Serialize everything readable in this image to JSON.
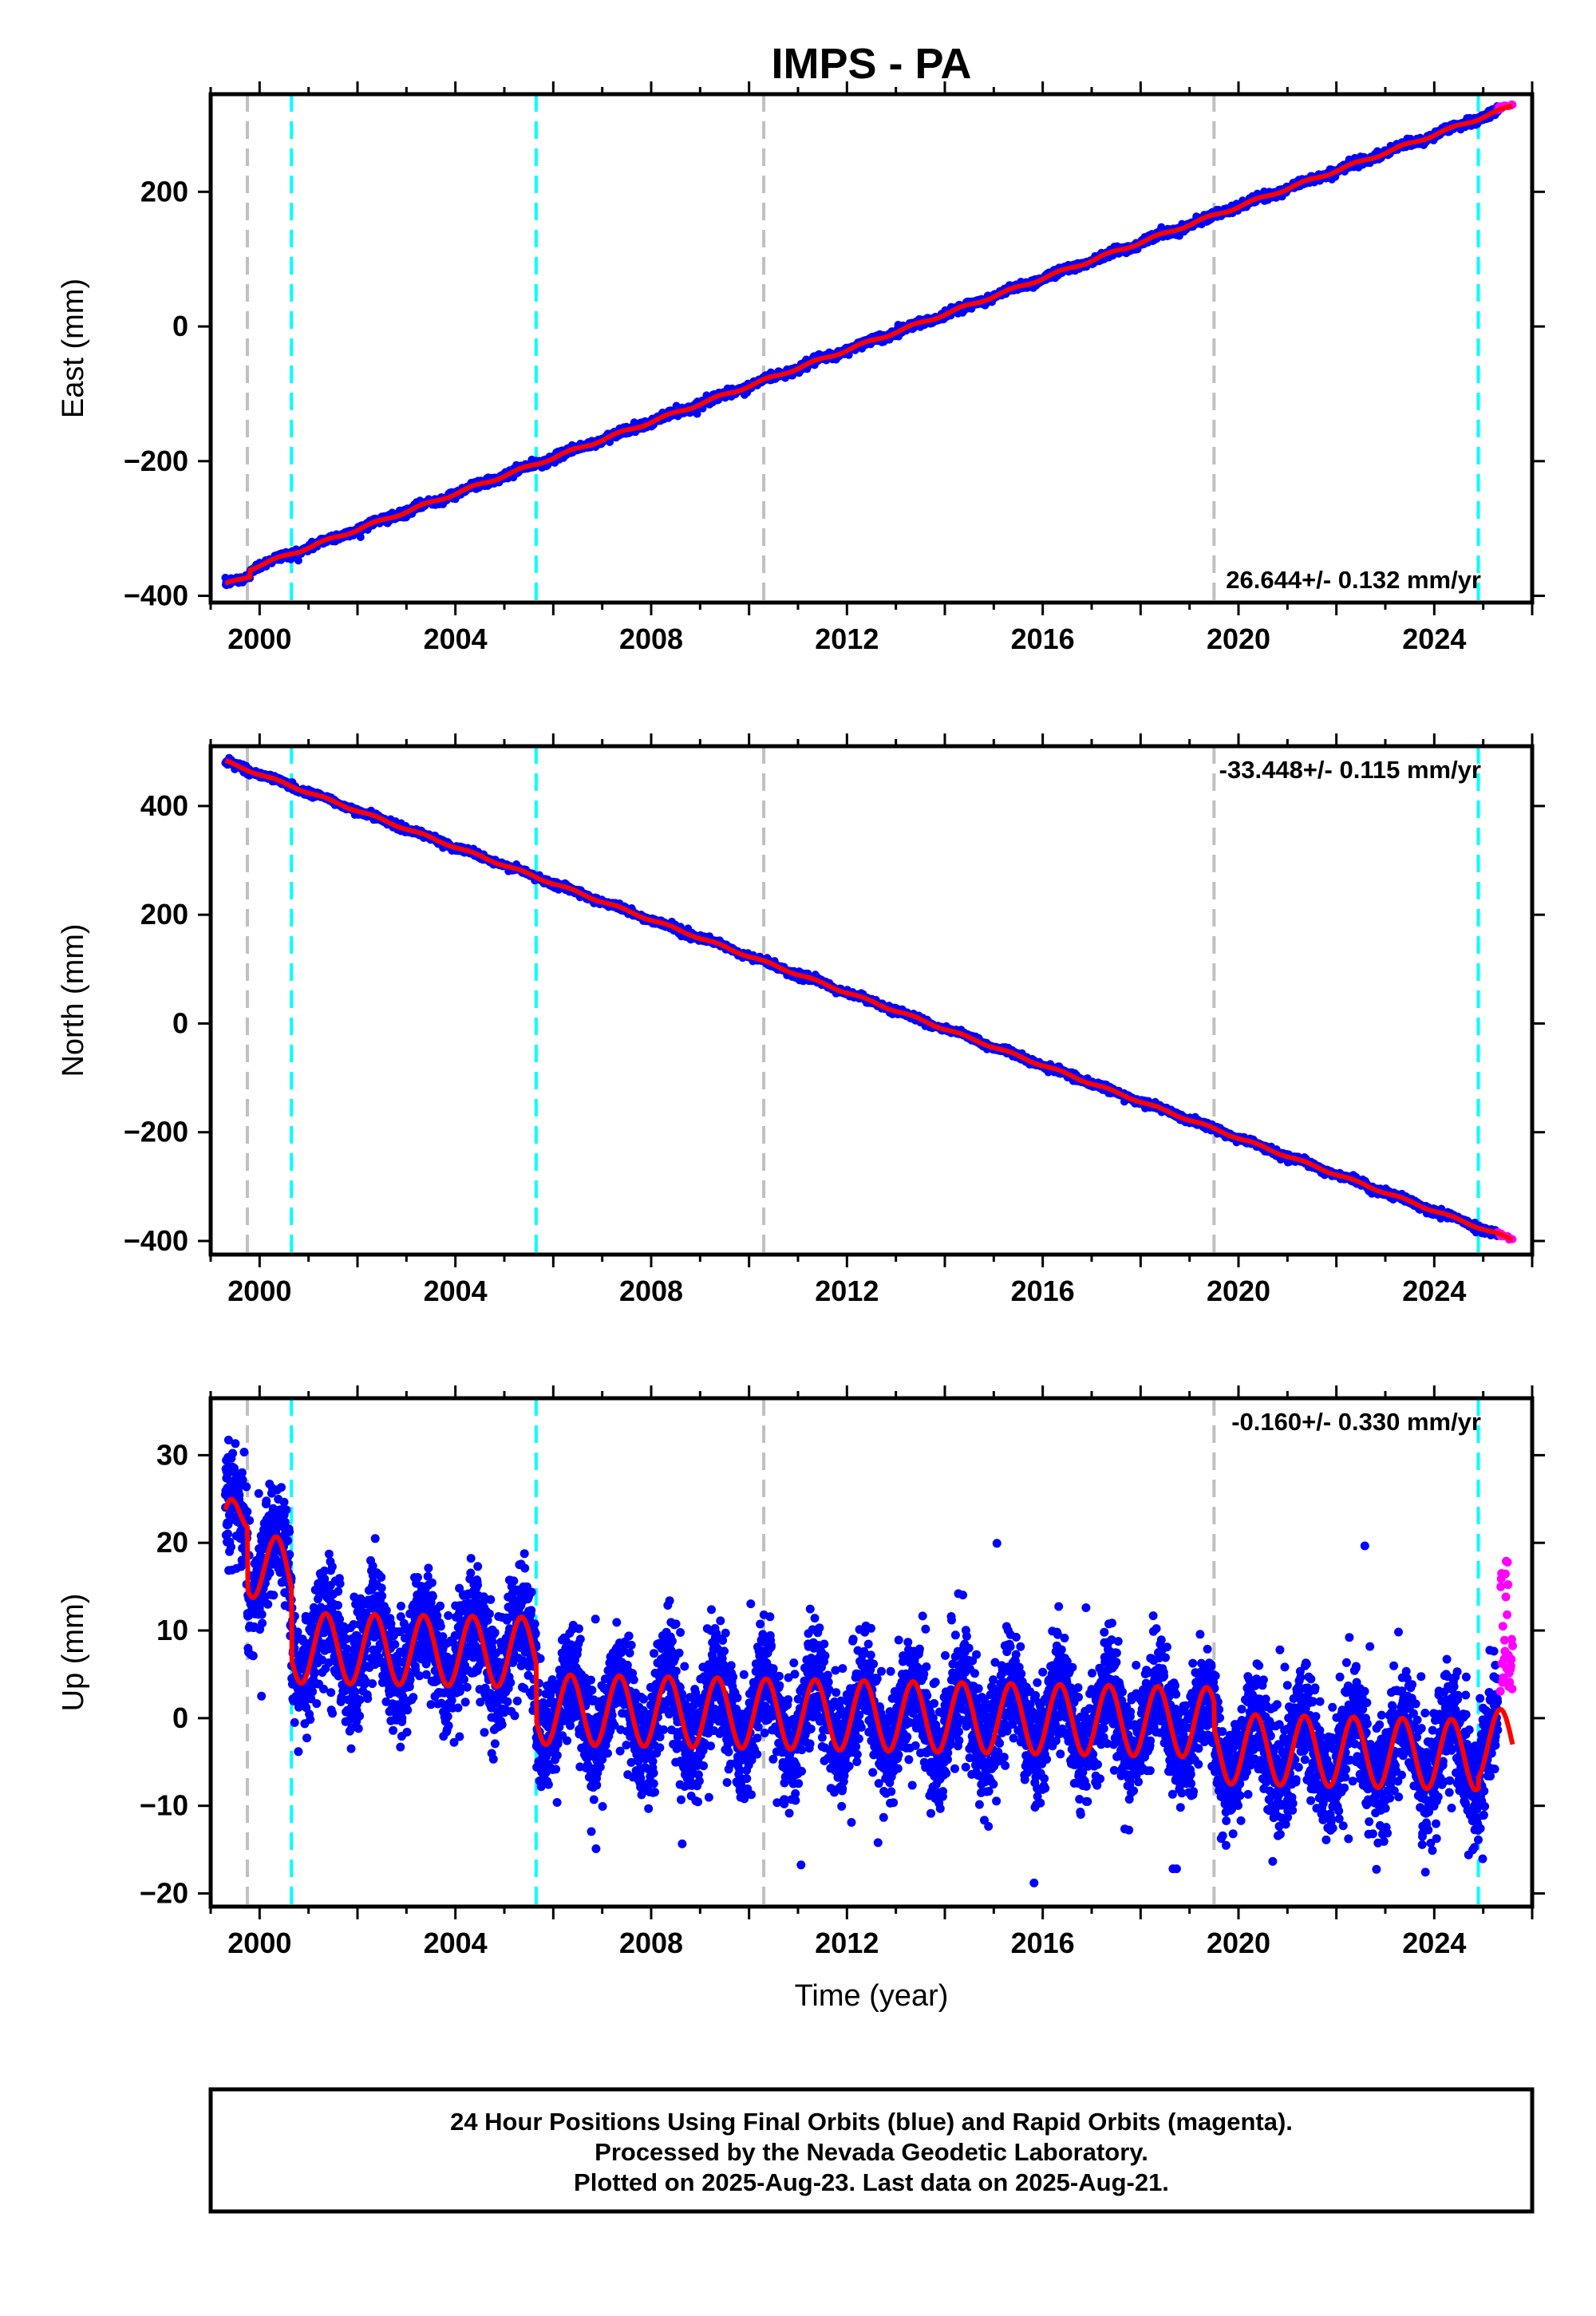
{
  "title": "IMPS - PA",
  "xlabel": "Time (year)",
  "caption": [
    "24 Hour Positions Using Final Orbits (blue) and Rapid Orbits (magenta).",
    "Processed by the Nevada Geodetic Laboratory.",
    "Plotted on 2025-Aug-23. Last data on 2025-Aug-21."
  ],
  "colors": {
    "final_orbits": "#0000ff",
    "rapid_orbits": "#ff00ff",
    "model_fit": "#ff0000",
    "equipment_change": "#00ffff",
    "earthquake": "#c0c0c0"
  },
  "chart_data": [
    {
      "type": "scatter",
      "component": "east",
      "ylabel": "East (mm)",
      "xlim": [
        1999.0,
        2026.0
      ],
      "ylim": [
        -410,
        345
      ],
      "x_ticks": [
        2000,
        2004,
        2008,
        2012,
        2016,
        2020,
        2024
      ],
      "y_ticks": [
        -400,
        -200,
        0,
        200
      ],
      "rate_label": "26.644+/- 0.132 mm/yr",
      "rate_position": "bottom-right",
      "gray_dashed_lines": [
        1999.75,
        2010.3,
        2019.5
      ],
      "cyan_dashed_lines": [
        2000.65,
        2005.65,
        2024.9
      ],
      "trend": {
        "rate_mm_per_yr": 26.644,
        "anchor_x": 2012.0,
        "anchor_y": -35
      },
      "seasonal": {
        "early_amplitude": 2,
        "late_amplitude": 2,
        "switch_year": 2005.65
      },
      "offsets": [
        {
          "x": 1999.8,
          "dy": 10
        }
      ],
      "noise_mm": 3,
      "final_range": [
        1999.3,
        2025.3
      ],
      "rapid_range": [
        2025.3,
        2025.6
      ],
      "rapid_offset": 2
    },
    {
      "type": "scatter",
      "component": "north",
      "ylabel": "North (mm)",
      "xlim": [
        1999.0,
        2026.0
      ],
      "ylim": [
        -425,
        510
      ],
      "x_ticks": [
        2000,
        2004,
        2008,
        2012,
        2016,
        2020,
        2024
      ],
      "y_ticks": [
        -400,
        -200,
        0,
        200,
        400
      ],
      "rate_label": "-33.448+/- 0.115 mm/yr",
      "rate_position": "top-right",
      "gray_dashed_lines": [
        1999.75,
        2010.3,
        2019.5
      ],
      "cyan_dashed_lines": [
        2000.65,
        2005.65,
        2024.9
      ],
      "trend": {
        "rate_mm_per_yr": -33.448,
        "anchor_x": 2012.0,
        "anchor_y": 57
      },
      "seasonal": {
        "early_amplitude": 2,
        "late_amplitude": 2,
        "switch_year": 2005.65
      },
      "offsets": [],
      "noise_mm": 3,
      "final_range": [
        1999.3,
        2025.3
      ],
      "rapid_range": [
        2025.3,
        2025.6
      ],
      "rapid_offset": 0
    },
    {
      "type": "scatter",
      "component": "up",
      "ylabel": "Up (mm)",
      "xlim": [
        1999.0,
        2026.0
      ],
      "ylim": [
        -21.5,
        36.5
      ],
      "x_ticks": [
        2000,
        2004,
        2008,
        2012,
        2016,
        2020,
        2024
      ],
      "y_ticks": [
        -20,
        -10,
        0,
        10,
        20,
        30
      ],
      "rate_label": "-0.160+/- 0.330 mm/yr",
      "rate_position": "top-right",
      "gray_dashed_lines": [
        1999.75,
        2010.3,
        2019.5
      ],
      "cyan_dashed_lines": [
        2000.65,
        2005.65,
        2024.9
      ],
      "model_segments": [
        {
          "x_start": 1999.3,
          "x_end": 1999.75,
          "y_start": 20,
          "y_end": 25
        },
        {
          "x_start": 1999.75,
          "x_end": 2000.65,
          "y_start": 18,
          "y_end": 16
        },
        {
          "x_start": 2000.65,
          "x_end": 2005.65,
          "y_start": 8,
          "y_end": 7.5
        },
        {
          "x_start": 2005.65,
          "x_end": 2010.3,
          "y_start": 1,
          "y_end": 0.5
        },
        {
          "x_start": 2010.3,
          "x_end": 2019.5,
          "y_start": 0.5,
          "y_end": -0.5
        },
        {
          "x_start": 2019.5,
          "x_end": 2024.9,
          "y_start": -3.5,
          "y_end": -4.2
        },
        {
          "x_start": 2024.9,
          "x_end": 2025.6,
          "y_start": -3,
          "y_end": -3
        }
      ],
      "seasonal": {
        "early_amplitude": 4,
        "late_amplitude": 4,
        "switch_year": 2005.65
      },
      "noise_mm": 3.2,
      "final_range": [
        1999.3,
        2025.3
      ],
      "rapid_range": [
        2025.35,
        2025.6
      ],
      "rapid_y_range": [
        3,
        18
      ]
    }
  ]
}
